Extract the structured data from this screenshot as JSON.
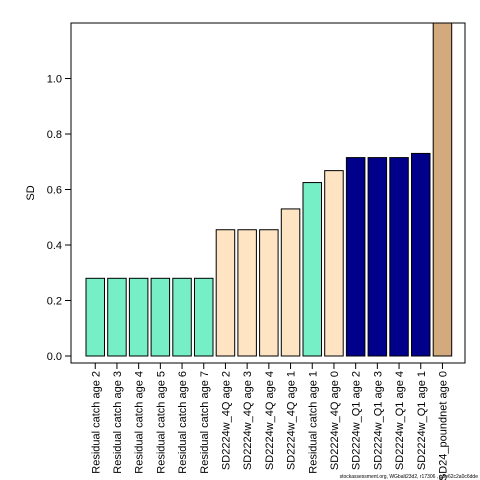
{
  "chart_data": {
    "type": "bar",
    "title": "",
    "xlabel": "",
    "ylabel": "SD",
    "ylim": [
      0,
      1.2
    ],
    "yticks": [
      "0.0",
      "0.2",
      "0.4",
      "0.6",
      "0.8",
      "1.0"
    ],
    "grid": false,
    "legend": "none",
    "categories": [
      "Residual catch age 2",
      "Residual catch age 3",
      "Residual catch age 4",
      "Residual catch age 5",
      "Residual catch age 6",
      "Residual catch age 7",
      "SD2224w_4Q age 2",
      "SD2224w_4Q age 3",
      "SD2224w_4Q age 4",
      "SD2224w_4Q age 1",
      "Residual catch age 1",
      "SD2224w_4Q age 0",
      "SD2224w_Q1 age 2",
      "SD2224w_Q1 age 3",
      "SD2224w_Q1 age 4",
      "SD2224w_Q1 age 1",
      "SD24_poundnet age 0"
    ],
    "values": [
      0.28,
      0.28,
      0.28,
      0.28,
      0.28,
      0.28,
      0.455,
      0.455,
      0.455,
      0.53,
      0.625,
      0.668,
      0.715,
      0.715,
      0.715,
      0.73,
      1.2
    ],
    "bar_colors": [
      "#76EEC6",
      "#76EEC6",
      "#76EEC6",
      "#76EEC6",
      "#76EEC6",
      "#76EEC6",
      "#FFE4C4",
      "#FFE4C4",
      "#FFE4C4",
      "#FFE4C4",
      "#76EEC6",
      "#FFE4C4",
      "#00008B",
      "#00008B",
      "#00008B",
      "#00008B",
      "#D2AA7D"
    ]
  },
  "footnote": "stockassessment.org, WGbalt23d2, r17306 , g8e62c2a0c6dde"
}
